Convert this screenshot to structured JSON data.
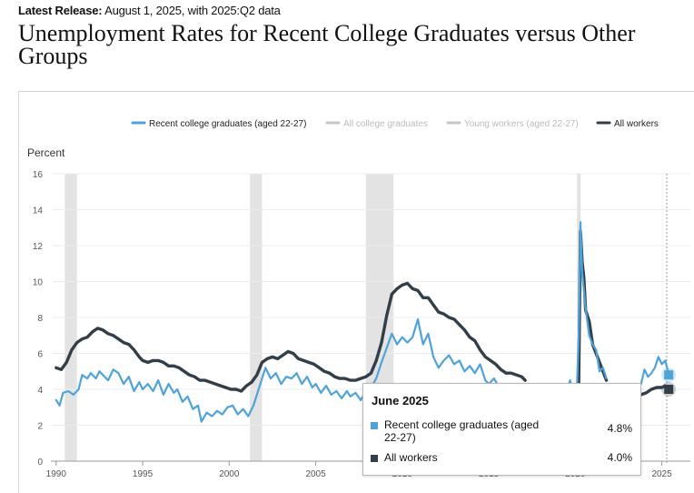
{
  "header": {
    "release_label": "Latest Release:",
    "release_value": "August 1, 2025, with 2025:Q2 data",
    "title": "Unemployment Rates for Recent College Graduates versus Other Groups"
  },
  "colors": {
    "recent_grads": "#4ea3d9",
    "all_workers": "#333f48",
    "inactive": "#c6c6c6",
    "recession": "#e3e3e3"
  },
  "tooltip": {
    "title": "June 2025",
    "rows": [
      {
        "label": "Recent college graduates (aged 22-27)",
        "value": "4.8%"
      },
      {
        "label": "All workers",
        "value": "4.0%"
      }
    ]
  },
  "chart_data": {
    "type": "line",
    "title": "Unemployment Rates for Recent College Graduates versus Other Groups",
    "ylabel": "Percent",
    "xlabel": "",
    "ylim": [
      0,
      16
    ],
    "xlim": [
      1989.8,
      2025.6
    ],
    "y_ticks": [
      0,
      2,
      4,
      6,
      8,
      10,
      12,
      14,
      16
    ],
    "x_ticks": [
      1990,
      1995,
      2000,
      2005,
      2010,
      2015,
      2020,
      2025
    ],
    "grid": true,
    "legend_position": "top-right",
    "legend": [
      {
        "name": "Recent college graduates (aged 22-27)",
        "active": true
      },
      {
        "name": "All college graduates",
        "active": false
      },
      {
        "name": "Young workers (aged 22-27)",
        "active": false
      },
      {
        "name": "All workers",
        "active": true
      }
    ],
    "recessions": [
      [
        1990.5,
        1991.2
      ],
      [
        2001.2,
        2001.9
      ],
      [
        2007.9,
        2009.5
      ],
      [
        2020.1,
        2020.3
      ]
    ],
    "series": [
      {
        "name": "Recent college graduates (aged 22-27)",
        "points": [
          [
            1990.0,
            3.4
          ],
          [
            1990.2,
            3.1
          ],
          [
            1990.4,
            3.8
          ],
          [
            1990.7,
            3.9
          ],
          [
            1991.0,
            3.7
          ],
          [
            1991.3,
            4.0
          ],
          [
            1991.5,
            4.8
          ],
          [
            1991.8,
            4.6
          ],
          [
            1992.0,
            4.9
          ],
          [
            1992.3,
            4.6
          ],
          [
            1992.5,
            5.0
          ],
          [
            1992.8,
            4.7
          ],
          [
            1993.0,
            4.5
          ],
          [
            1993.3,
            5.1
          ],
          [
            1993.6,
            4.9
          ],
          [
            1993.9,
            4.3
          ],
          [
            1994.2,
            4.7
          ],
          [
            1994.5,
            3.9
          ],
          [
            1994.8,
            4.4
          ],
          [
            1995.0,
            4.0
          ],
          [
            1995.3,
            4.3
          ],
          [
            1995.6,
            3.9
          ],
          [
            1995.9,
            4.5
          ],
          [
            1996.2,
            3.7
          ],
          [
            1996.5,
            4.3
          ],
          [
            1996.8,
            3.8
          ],
          [
            1997.0,
            4.0
          ],
          [
            1997.3,
            3.3
          ],
          [
            1997.6,
            3.6
          ],
          [
            1997.9,
            2.9
          ],
          [
            1998.2,
            3.1
          ],
          [
            1998.4,
            2.2
          ],
          [
            1998.7,
            2.7
          ],
          [
            1999.0,
            2.5
          ],
          [
            1999.3,
            2.8
          ],
          [
            1999.6,
            2.6
          ],
          [
            1999.9,
            3.0
          ],
          [
            2000.2,
            3.1
          ],
          [
            2000.5,
            2.6
          ],
          [
            2000.8,
            2.9
          ],
          [
            2001.1,
            2.5
          ],
          [
            2001.4,
            3.1
          ],
          [
            2001.7,
            4.0
          ],
          [
            2001.9,
            4.6
          ],
          [
            2002.1,
            5.2
          ],
          [
            2002.4,
            4.6
          ],
          [
            2002.7,
            4.9
          ],
          [
            2003.0,
            4.3
          ],
          [
            2003.3,
            4.7
          ],
          [
            2003.6,
            4.6
          ],
          [
            2003.9,
            4.9
          ],
          [
            2004.2,
            4.3
          ],
          [
            2004.5,
            4.7
          ],
          [
            2004.8,
            4.1
          ],
          [
            2005.0,
            4.3
          ],
          [
            2005.3,
            3.8
          ],
          [
            2005.6,
            4.2
          ],
          [
            2005.9,
            3.7
          ],
          [
            2006.2,
            3.9
          ],
          [
            2006.5,
            3.5
          ],
          [
            2006.8,
            3.9
          ],
          [
            2007.0,
            3.6
          ],
          [
            2007.3,
            3.8
          ],
          [
            2007.6,
            3.4
          ],
          [
            2007.9,
            3.9
          ],
          [
            2008.2,
            4.1
          ],
          [
            2008.5,
            4.6
          ],
          [
            2008.8,
            5.5
          ],
          [
            2009.1,
            6.3
          ],
          [
            2009.4,
            7.1
          ],
          [
            2009.7,
            6.5
          ],
          [
            2010.0,
            6.9
          ],
          [
            2010.3,
            6.6
          ],
          [
            2010.6,
            6.9
          ],
          [
            2010.9,
            7.9
          ],
          [
            2011.2,
            6.5
          ],
          [
            2011.5,
            7.1
          ],
          [
            2011.8,
            5.8
          ],
          [
            2012.1,
            5.2
          ],
          [
            2012.4,
            5.6
          ],
          [
            2012.7,
            5.9
          ],
          [
            2013.0,
            5.4
          ],
          [
            2013.3,
            5.6
          ],
          [
            2013.6,
            5.0
          ],
          [
            2013.9,
            5.3
          ],
          [
            2014.2,
            4.9
          ],
          [
            2014.5,
            5.4
          ],
          [
            2014.8,
            4.5
          ],
          [
            2015.0,
            4.3
          ],
          [
            2015.3,
            4.6
          ],
          [
            2015.6,
            4.1
          ],
          [
            2015.9,
            4.2
          ],
          [
            2019.5,
            3.9
          ],
          [
            2019.7,
            4.5
          ],
          [
            2019.8,
            4.0
          ],
          [
            2020.1,
            4.2
          ],
          [
            2020.2,
            7.0
          ],
          [
            2020.3,
            13.3
          ],
          [
            2020.4,
            10.5
          ],
          [
            2020.6,
            8.5
          ],
          [
            2020.8,
            7.0
          ],
          [
            2021.0,
            6.5
          ],
          [
            2021.2,
            6.2
          ],
          [
            2021.4,
            5.0
          ],
          [
            2021.6,
            5.2
          ],
          [
            2021.8,
            4.6
          ],
          [
            2023.8,
            4.3
          ],
          [
            2024.0,
            5.1
          ],
          [
            2024.2,
            4.7
          ],
          [
            2024.4,
            4.9
          ],
          [
            2024.6,
            5.2
          ],
          [
            2024.8,
            5.8
          ],
          [
            2025.0,
            5.4
          ],
          [
            2025.2,
            5.6
          ],
          [
            2025.4,
            4.8
          ]
        ]
      },
      {
        "name": "All workers",
        "points": [
          [
            1990.0,
            5.2
          ],
          [
            1990.3,
            5.1
          ],
          [
            1990.6,
            5.5
          ],
          [
            1990.9,
            6.2
          ],
          [
            1991.2,
            6.6
          ],
          [
            1991.5,
            6.8
          ],
          [
            1991.8,
            6.9
          ],
          [
            1992.1,
            7.2
          ],
          [
            1992.4,
            7.4
          ],
          [
            1992.7,
            7.3
          ],
          [
            1993.0,
            7.1
          ],
          [
            1993.3,
            7.0
          ],
          [
            1993.6,
            6.8
          ],
          [
            1993.9,
            6.6
          ],
          [
            1994.2,
            6.5
          ],
          [
            1994.5,
            6.2
          ],
          [
            1994.8,
            5.8
          ],
          [
            1995.0,
            5.6
          ],
          [
            1995.3,
            5.5
          ],
          [
            1995.6,
            5.6
          ],
          [
            1995.9,
            5.6
          ],
          [
            1996.2,
            5.5
          ],
          [
            1996.5,
            5.3
          ],
          [
            1996.8,
            5.3
          ],
          [
            1997.1,
            5.2
          ],
          [
            1997.4,
            5.0
          ],
          [
            1997.7,
            4.8
          ],
          [
            1998.0,
            4.7
          ],
          [
            1998.3,
            4.5
          ],
          [
            1998.6,
            4.5
          ],
          [
            1998.9,
            4.4
          ],
          [
            1999.2,
            4.3
          ],
          [
            1999.5,
            4.2
          ],
          [
            1999.8,
            4.1
          ],
          [
            2000.1,
            4.0
          ],
          [
            2000.4,
            4.0
          ],
          [
            2000.7,
            3.9
          ],
          [
            2001.0,
            4.2
          ],
          [
            2001.3,
            4.4
          ],
          [
            2001.6,
            4.8
          ],
          [
            2001.9,
            5.5
          ],
          [
            2002.2,
            5.7
          ],
          [
            2002.5,
            5.8
          ],
          [
            2002.8,
            5.7
          ],
          [
            2003.1,
            5.9
          ],
          [
            2003.4,
            6.1
          ],
          [
            2003.7,
            6.0
          ],
          [
            2004.0,
            5.7
          ],
          [
            2004.3,
            5.6
          ],
          [
            2004.6,
            5.5
          ],
          [
            2004.9,
            5.4
          ],
          [
            2005.2,
            5.2
          ],
          [
            2005.5,
            5.0
          ],
          [
            2005.8,
            4.9
          ],
          [
            2006.1,
            4.7
          ],
          [
            2006.4,
            4.6
          ],
          [
            2006.7,
            4.6
          ],
          [
            2007.0,
            4.5
          ],
          [
            2007.3,
            4.5
          ],
          [
            2007.6,
            4.6
          ],
          [
            2007.9,
            4.7
          ],
          [
            2008.2,
            4.9
          ],
          [
            2008.5,
            5.6
          ],
          [
            2008.8,
            6.6
          ],
          [
            2009.1,
            8.1
          ],
          [
            2009.4,
            9.3
          ],
          [
            2009.7,
            9.6
          ],
          [
            2010.0,
            9.8
          ],
          [
            2010.3,
            9.9
          ],
          [
            2010.6,
            9.6
          ],
          [
            2010.9,
            9.5
          ],
          [
            2011.2,
            9.1
          ],
          [
            2011.5,
            9.1
          ],
          [
            2011.8,
            8.7
          ],
          [
            2012.1,
            8.3
          ],
          [
            2012.4,
            8.2
          ],
          [
            2012.7,
            8.0
          ],
          [
            2013.0,
            7.9
          ],
          [
            2013.3,
            7.6
          ],
          [
            2013.6,
            7.3
          ],
          [
            2013.9,
            6.9
          ],
          [
            2014.2,
            6.7
          ],
          [
            2014.5,
            6.2
          ],
          [
            2014.8,
            5.8
          ],
          [
            2015.1,
            5.6
          ],
          [
            2015.4,
            5.4
          ],
          [
            2015.7,
            5.1
          ],
          [
            2016.0,
            4.9
          ],
          [
            2016.3,
            4.9
          ],
          [
            2016.6,
            4.8
          ],
          [
            2016.9,
            4.7
          ],
          [
            2017.1,
            4.5
          ],
          [
            2020.0,
            3.6
          ],
          [
            2020.1,
            3.6
          ],
          [
            2020.2,
            4.4
          ],
          [
            2020.3,
            12.8
          ],
          [
            2020.4,
            11.1
          ],
          [
            2020.5,
            10.2
          ],
          [
            2020.6,
            8.4
          ],
          [
            2020.8,
            7.8
          ],
          [
            2021.0,
            6.5
          ],
          [
            2021.2,
            6.0
          ],
          [
            2021.4,
            5.5
          ],
          [
            2021.6,
            5.0
          ],
          [
            2021.8,
            4.5
          ],
          [
            2023.5,
            3.6
          ],
          [
            2023.8,
            3.7
          ],
          [
            2024.1,
            3.8
          ],
          [
            2024.4,
            4.0
          ],
          [
            2024.7,
            4.1
          ],
          [
            2025.0,
            4.1
          ],
          [
            2025.2,
            4.2
          ],
          [
            2025.4,
            4.0
          ]
        ]
      }
    ]
  }
}
